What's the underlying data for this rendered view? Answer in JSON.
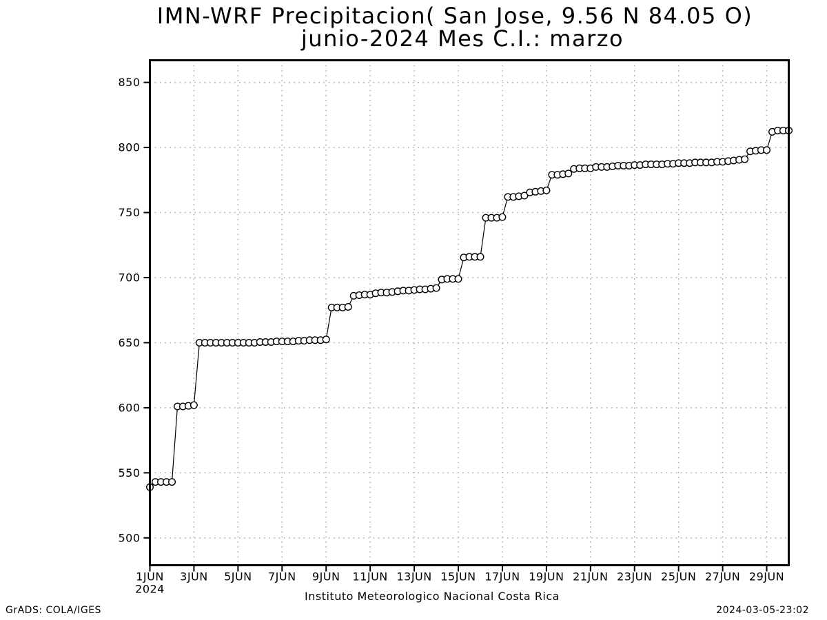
{
  "chart_data": {
    "type": "line",
    "title": "IMN-WRF  Precipitacion( San Jose, 9.56  N 84.05  O)",
    "subtitle": "junio-2024 Mes C.I.: marzo",
    "xlabel": "Instituto Meteorologico Nacional Costa Rica",
    "ylabel": "",
    "x_axis": {
      "start_day_label": "1JUN",
      "year_label": "2024",
      "tick_days": [
        1,
        3,
        5,
        7,
        9,
        11,
        13,
        15,
        17,
        19,
        21,
        23,
        25,
        27,
        29
      ],
      "tick_labels": [
        "1JUN",
        "3JUN",
        "5JUN",
        "7JUN",
        "9JUN",
        "11JUN",
        "13JUN",
        "15JUN",
        "17JUN",
        "19JUN",
        "21JUN",
        "23JUN",
        "25JUN",
        "27JUN",
        "29JUN"
      ],
      "xlim_days": [
        1,
        30
      ]
    },
    "y_axis": {
      "ticks": [
        500,
        550,
        600,
        650,
        700,
        750,
        800,
        850
      ],
      "ylim": [
        479,
        867
      ]
    },
    "grid": "dotted",
    "legend": "none",
    "marker": "open-circle",
    "series": [
      {
        "name": "cumulative-precipitation",
        "start_day": 1.0,
        "step_days": 0.25,
        "values": [
          539,
          543,
          543,
          543,
          543,
          601,
          601,
          601.5,
          602,
          650,
          650,
          650,
          650,
          650,
          650,
          650,
          650,
          650,
          650,
          650,
          650.5,
          650.5,
          650.5,
          651,
          651,
          651,
          651,
          651.5,
          651.5,
          652,
          652,
          652,
          652.5,
          677,
          677,
          677,
          677.5,
          686,
          686.5,
          687,
          687,
          688,
          688.5,
          688.5,
          689,
          689.5,
          690,
          690,
          690.5,
          691,
          691,
          691.5,
          692,
          698.5,
          699,
          699,
          699,
          715.5,
          716,
          716,
          716,
          746,
          746,
          746,
          746.5,
          762,
          762,
          762.5,
          763,
          765.5,
          766,
          766.5,
          767,
          779,
          779,
          779.5,
          780,
          783.5,
          784,
          784,
          784,
          785,
          785,
          785,
          785.5,
          786,
          786,
          786,
          786.5,
          786.5,
          787,
          787,
          787,
          787,
          787.5,
          787.5,
          788,
          788,
          788,
          788.5,
          788.5,
          788.5,
          788.5,
          789,
          789,
          789.5,
          790,
          790.5,
          791,
          797,
          797.5,
          798,
          798,
          812,
          813,
          813,
          813
        ]
      }
    ],
    "colors": {
      "line": "#000000",
      "marker_fill": "#ffffff",
      "grid": "#a8a8a8",
      "axis": "#000000",
      "background": "#ffffff"
    }
  },
  "footer": {
    "left": "GrADS: COLA/IGES",
    "right": "2024-03-05-23:02"
  }
}
